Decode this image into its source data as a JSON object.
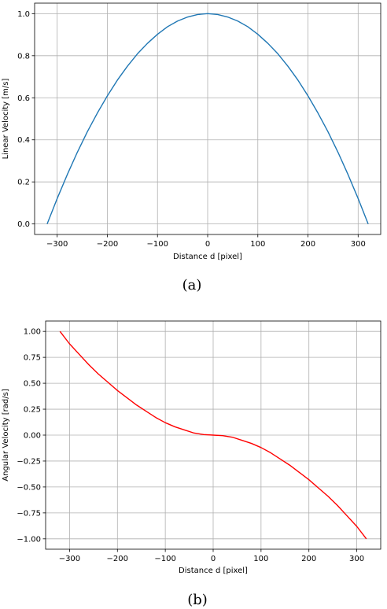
{
  "chart_data": [
    {
      "type": "line",
      "xlabel": "Distance d [pixel]",
      "ylabel": "Linear Velocity [m/s]",
      "xlim": [
        -345,
        345
      ],
      "ylim": [
        -0.05,
        1.05
      ],
      "xticks": [
        -300,
        -200,
        -100,
        0,
        100,
        200,
        300
      ],
      "xtick_labels": [
        "−300",
        "−200",
        "−100",
        "0",
        "100",
        "200",
        "300"
      ],
      "yticks": [
        0.0,
        0.2,
        0.4,
        0.6,
        0.8,
        1.0
      ],
      "ytick_labels": [
        "0.0",
        "0.2",
        "0.4",
        "0.6",
        "0.8",
        "1.0"
      ],
      "grid": true,
      "caption": "(a)",
      "series": [
        {
          "color": "#1f77b4",
          "x": [
            -320,
            -300,
            -280,
            -260,
            -240,
            -220,
            -200,
            -180,
            -160,
            -140,
            -120,
            -100,
            -80,
            -60,
            -40,
            -20,
            0,
            20,
            40,
            60,
            80,
            100,
            120,
            140,
            160,
            180,
            200,
            220,
            240,
            260,
            280,
            300,
            320
          ],
          "y": [
            0.0,
            0.121,
            0.234,
            0.34,
            0.438,
            0.527,
            0.609,
            0.684,
            0.75,
            0.809,
            0.859,
            0.902,
            0.938,
            0.965,
            0.984,
            0.996,
            1.0,
            0.996,
            0.984,
            0.965,
            0.938,
            0.902,
            0.859,
            0.809,
            0.75,
            0.684,
            0.609,
            0.527,
            0.438,
            0.34,
            0.234,
            0.121,
            0.0
          ]
        }
      ]
    },
    {
      "type": "line",
      "xlabel": "Distance d [pixel]",
      "ylabel": "Angular Velocity [rad/s]",
      "xlim": [
        -350,
        350
      ],
      "ylim": [
        -1.1,
        1.1
      ],
      "xticks": [
        -300,
        -200,
        -100,
        0,
        100,
        200,
        300
      ],
      "xtick_labels": [
        "−300",
        "−200",
        "−100",
        "0",
        "100",
        "200",
        "300"
      ],
      "yticks": [
        -1.0,
        -0.75,
        -0.5,
        -0.25,
        0.0,
        0.25,
        0.5,
        0.75,
        1.0
      ],
      "ytick_labels": [
        "−1.00",
        "−0.75",
        "−0.50",
        "−0.25",
        "0.00",
        "0.25",
        "0.50",
        "0.75",
        "1.00"
      ],
      "grid": true,
      "caption": "(b)",
      "series": [
        {
          "color": "#ff0000",
          "x": [
            -320,
            -300,
            -280,
            -260,
            -240,
            -220,
            -200,
            -180,
            -160,
            -140,
            -120,
            -100,
            -80,
            -60,
            -40,
            -20,
            0,
            20,
            40,
            60,
            80,
            100,
            120,
            140,
            160,
            180,
            200,
            220,
            240,
            260,
            280,
            300,
            320
          ],
          "y": [
            1.0,
            0.88,
            0.78,
            0.68,
            0.59,
            0.51,
            0.43,
            0.36,
            0.29,
            0.23,
            0.17,
            0.12,
            0.08,
            0.05,
            0.02,
            0.005,
            0.0,
            -0.005,
            -0.02,
            -0.05,
            -0.08,
            -0.12,
            -0.17,
            -0.23,
            -0.29,
            -0.36,
            -0.43,
            -0.51,
            -0.59,
            -0.68,
            -0.78,
            -0.88,
            -1.0
          ]
        }
      ]
    }
  ]
}
